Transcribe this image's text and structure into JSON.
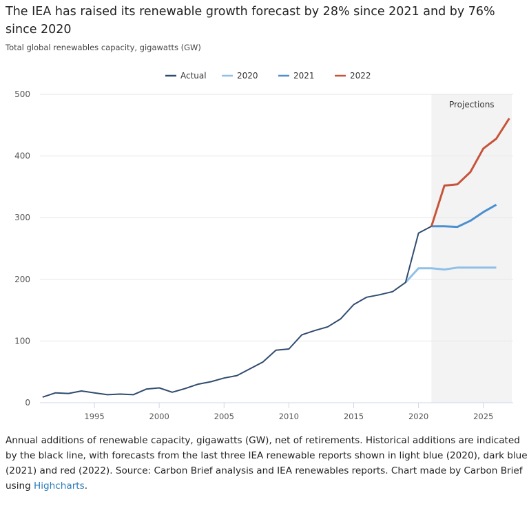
{
  "title": "The IEA has raised its renewable growth forecast by 28% since 2021 and by 76% since 2020",
  "subtitle": "Total global renewables capacity, gigawatts (GW)",
  "caption": "Annual additions of renewable capacity, gigawatts (GW), net of retirements. Historical additions are indicated by the black line, with forecasts from the last three IEA renewable reports shown in light blue (2020), dark blue (2021) and red (2022). Source: Carbon Brief analysis and IEA renewables reports. Chart made by Carbon Brief using ",
  "caption_link": "Highcharts",
  "caption_end": ".",
  "chart_data": {
    "type": "line",
    "title": "The IEA has raised its renewable growth forecast by 28% since 2021 and by 76% since 2020",
    "subtitle": "Total global renewables capacity, gigawatts (GW)",
    "xlim": [
      1990.8,
      2027.3
    ],
    "ylim": [
      0,
      500
    ],
    "yticks": [
      0,
      100,
      200,
      300,
      400,
      500
    ],
    "xticks": [
      1995,
      2000,
      2005,
      2010,
      2015,
      2020,
      2025
    ],
    "grid": true,
    "legend_position": "top-center",
    "band": {
      "label": "Projections",
      "from": 2021,
      "to": 2027.2,
      "color": "#f3f3f3"
    },
    "series": [
      {
        "name": "Actual",
        "color": "#2f4b6e",
        "x": [
          1991,
          1992,
          1993,
          1994,
          1995,
          1996,
          1997,
          1998,
          1999,
          2000,
          2001,
          2002,
          2003,
          2004,
          2005,
          2006,
          2007,
          2008,
          2009,
          2010,
          2011,
          2012,
          2013,
          2014,
          2015,
          2016,
          2017,
          2018,
          2019,
          2020,
          2021
        ],
        "y": [
          9,
          16,
          15,
          19,
          16,
          13,
          14,
          13,
          22,
          24,
          17,
          23,
          30,
          34,
          40,
          44,
          55,
          66,
          85,
          87,
          110,
          117,
          123,
          136,
          159,
          171,
          175,
          180,
          195,
          275,
          286
        ]
      },
      {
        "name": "2020",
        "color": "#8fc0e8",
        "x": [
          2019,
          2020,
          2021,
          2022,
          2023,
          2024,
          2025,
          2026
        ],
        "y": [
          195,
          218,
          218,
          216,
          219,
          219,
          219,
          219
        ]
      },
      {
        "name": "2021",
        "color": "#4a8fd0",
        "x": [
          2021,
          2022,
          2023,
          2024,
          2025,
          2026
        ],
        "y": [
          286,
          286,
          285,
          295,
          309,
          321
        ]
      },
      {
        "name": "2022",
        "color": "#c6543a",
        "x": [
          2021,
          2022,
          2023,
          2024,
          2025,
          2026,
          2027
        ],
        "y": [
          286,
          352,
          354,
          374,
          412,
          428,
          461
        ]
      }
    ]
  }
}
